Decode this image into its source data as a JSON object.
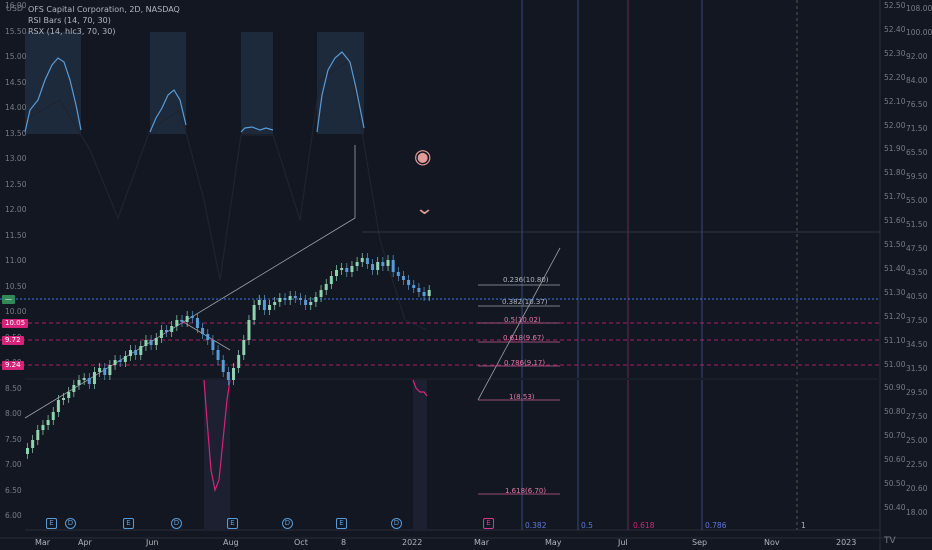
{
  "header": {
    "currency": "USD",
    "title": "OFS Capital Corporation, 2D, NASDAQ",
    "indicator1": "RSI Bars (14, 70, 30)",
    "indicator2": "RSX (14, hlc3, 70, 30)"
  },
  "left_axis": [
    "16.00",
    "15.50",
    "15.00",
    "14.50",
    "14.00",
    "13.50",
    "13.00",
    "12.50",
    "12.00",
    "11.50",
    "11.00",
    "10.50",
    "10.00",
    "9.50",
    "9.00",
    "8.50",
    "8.00",
    "7.50",
    "7.00",
    "6.50",
    "6.00"
  ],
  "right_axis_inner": [
    "52.50",
    "52.40",
    "52.30",
    "52.20",
    "52.10",
    "52.00",
    "51.90",
    "51.80",
    "51.70",
    "51.60",
    "51.50",
    "51.40",
    "51.30",
    "51.20",
    "51.10",
    "51.00",
    "50.90",
    "50.80",
    "50.70",
    "50.60",
    "50.50",
    "50.40"
  ],
  "right_axis_outer": [
    "108.00",
    "100.00",
    "92.00",
    "84.00",
    "76.50",
    "71.50",
    "65.50",
    "59.50",
    "55.00",
    "51.50",
    "47.50",
    "43.50",
    "40.50",
    "37.50",
    "34.50",
    "31.50",
    "29.50",
    "27.50",
    "25.00",
    "22.50",
    "20.60",
    "18.00"
  ],
  "price_tags": [
    {
      "label": "—",
      "color": "#2e8b57"
    },
    {
      "label": "10.05",
      "color": "#d6237a"
    },
    {
      "label": "9.72",
      "color": "#d6237a"
    },
    {
      "label": "9.24",
      "color": "#d6237a"
    }
  ],
  "fib_levels": [
    {
      "label": "0.236(10.80)",
      "color": "#b2b5be"
    },
    {
      "label": "0.382(10.37)",
      "color": "#b2b5be"
    },
    {
      "label": "0.5(10.02)",
      "color": "#e07aa6"
    },
    {
      "label": "0.618(9.67)",
      "color": "#e07aa6"
    },
    {
      "label": "0.786(9.17)",
      "color": "#e07aa6"
    },
    {
      "label": "1(8.53)",
      "color": "#e07aa6"
    },
    {
      "label": "1.618(6.70)",
      "color": "#e07aa6"
    }
  ],
  "bottom_fibs": [
    {
      "label": "0.382",
      "color": "#5b7bd5"
    },
    {
      "label": "0.5",
      "color": "#5b7bd5"
    },
    {
      "label": "0.618",
      "color": "#d6237a"
    },
    {
      "label": "0.786",
      "color": "#5b7bd5"
    },
    {
      "label": "1",
      "color": "#b2b5be"
    }
  ],
  "time_axis": [
    "Mar",
    "Apr",
    "Jun",
    "Aug",
    "Oct",
    "8",
    "2022",
    "Mar",
    "May",
    "Jul",
    "Sep",
    "Nov",
    "2023"
  ],
  "events": [
    "E",
    "D",
    "E",
    "D",
    "E",
    "D",
    "E",
    "D",
    "E"
  ],
  "icons": {
    "eye": "eye-icon",
    "chevron": "chevron-down-icon",
    "logo": "tradingview-logo"
  },
  "logo_text": "TV",
  "colors": {
    "bg": "#131722",
    "up": "#26a69a",
    "down": "#5b9bd5",
    "rsi": "#5b9bd5",
    "rsx": "#d6237a"
  }
}
